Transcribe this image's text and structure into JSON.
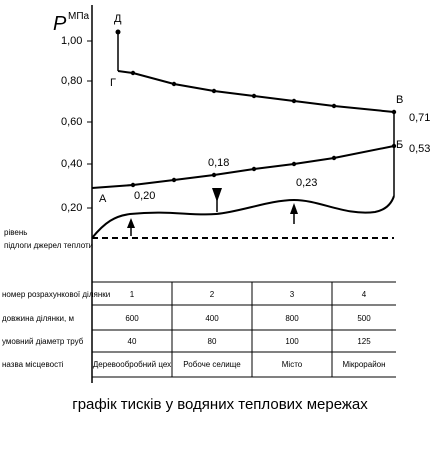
{
  "axis": {
    "symbol": "P",
    "unit": "МПа",
    "ticks": [
      "1,00",
      "0,80",
      "0,60",
      "0,40",
      "0,20"
    ]
  },
  "points": {
    "D": "Д",
    "G": "Г",
    "V": "В",
    "B": "Б",
    "A": "А"
  },
  "values": {
    "v": "0,71",
    "b": "0,53",
    "v1": "0,18",
    "v2": "0,20",
    "v3": "0,23"
  },
  "side_labels": {
    "level": "рівень",
    "source": "підлоги джерел теплоти"
  },
  "table": {
    "rows": [
      {
        "label": "номер розрахункової ділянки",
        "cells": [
          "1",
          "2",
          "3",
          "4"
        ]
      },
      {
        "label": "довжина ділянки, м",
        "cells": [
          "600",
          "400",
          "800",
          "500"
        ]
      },
      {
        "label": "умовний діаметр труб",
        "cells": [
          "40",
          "80",
          "100",
          "125"
        ]
      },
      {
        "label": "назва місцевості",
        "cells": [
          "Деревообробний цех",
          "Робоче селище",
          "Місто",
          "Мікрорайон"
        ]
      }
    ]
  },
  "caption": "графік тисків у водяних теплових мережах",
  "colors": {
    "line": "#000000",
    "background": "#ffffff"
  }
}
